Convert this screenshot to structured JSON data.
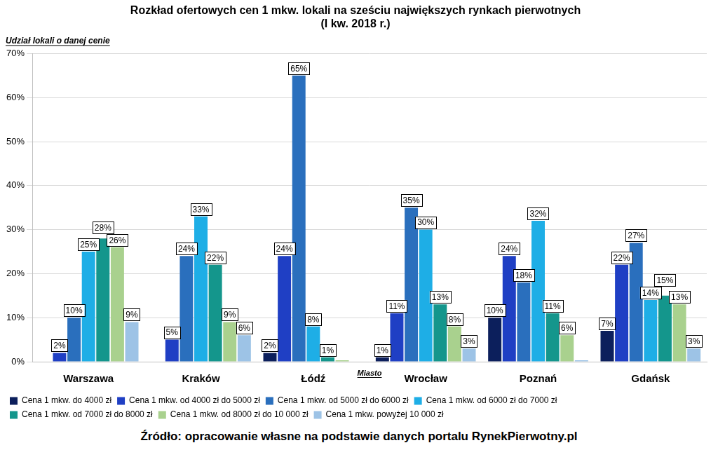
{
  "chart_data": {
    "type": "bar",
    "title": "Rozkład ofertowych cen 1 mkw. lokali na sześciu największych rynkach pierwotnych",
    "subtitle": "(I kw. 2018 r.)",
    "y_label": "Udział lokali o danej cenie",
    "x_label": "Miasto",
    "source": "Źródło: opracowanie własne na podstawie danych portalu RynekPierwotny.pl",
    "categories": [
      "Warszawa",
      "Kraków",
      "Łódź",
      "Wrocław",
      "Poznań",
      "Gdańsk"
    ],
    "series": [
      {
        "name": "Cena 1 mkw. do 4000 zł",
        "color": "#0c1f5c",
        "values": [
          null,
          null,
          2,
          1,
          10,
          7
        ],
        "value_labels": [
          null,
          null,
          "2%",
          "1%",
          "10%",
          "7%"
        ]
      },
      {
        "name": "Cena 1 mkw. od 4000 zł do 5000 zł",
        "color": "#1f3fc4",
        "values": [
          2,
          5,
          24,
          11,
          24,
          22
        ],
        "value_labels": [
          "2%",
          "5%",
          "24%",
          "11%",
          "24%",
          "22%"
        ]
      },
      {
        "name": "Cena 1 mkw. od 5000 zł do 6000 zł",
        "color": "#2a6fbd",
        "values": [
          10,
          24,
          65,
          35,
          18,
          27
        ],
        "value_labels": [
          "10%",
          "24%",
          "65%",
          "35%",
          "18%",
          "27%"
        ]
      },
      {
        "name": "Cena 1 mkw. od 6000 zł do 7000 zł",
        "color": "#1eaee6",
        "values": [
          25,
          33,
          8,
          30,
          32,
          14
        ],
        "value_labels": [
          "25%",
          "33%",
          "8%",
          "30%",
          "32%",
          "14%"
        ]
      },
      {
        "name": "Cena 1 mkw. od 7000 zł do 8000 zł",
        "color": "#14968c",
        "values": [
          28,
          22,
          1,
          13,
          11,
          15
        ],
        "value_labels": [
          "28%",
          "22%",
          "1%",
          "13%",
          "11%",
          "15%"
        ]
      },
      {
        "name": "Cena 1 mkw. od 8000 zł do 10 000 zł",
        "color": "#a9d18e",
        "values": [
          26,
          9,
          0.3,
          8,
          6,
          13
        ],
        "value_labels": [
          "26%",
          "9%",
          null,
          "8%",
          "6%",
          "13%"
        ]
      },
      {
        "name": "Cena 1 mkw. powyżej 10 000 zł",
        "color": "#9dc3e6",
        "values": [
          9,
          6,
          null,
          3,
          0.3,
          3
        ],
        "value_labels": [
          "9%",
          "6%",
          null,
          "3%",
          null,
          "3%"
        ]
      }
    ],
    "ylim": [
      0,
      70
    ],
    "yticks": [
      {
        "value": 0,
        "label": "0%"
      },
      {
        "value": 10,
        "label": "10%"
      },
      {
        "value": 20,
        "label": "20%"
      },
      {
        "value": 30,
        "label": "30%"
      },
      {
        "value": 40,
        "label": "40%"
      },
      {
        "value": 50,
        "label": "50%"
      },
      {
        "value": 60,
        "label": "60%"
      },
      {
        "value": 70,
        "label": "70%"
      }
    ],
    "grid": true,
    "legend": "bottom",
    "data_labels": true
  }
}
